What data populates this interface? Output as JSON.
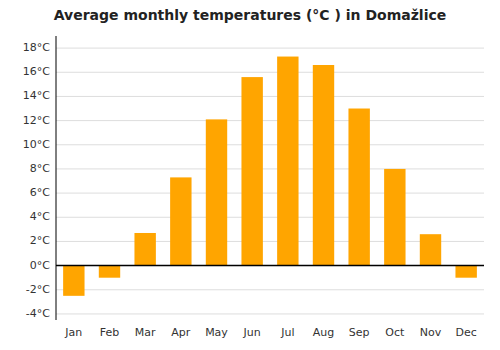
{
  "chart_data": {
    "type": "bar",
    "title": "Average monthly temperatures (°C ) in Domažlice",
    "categories": [
      "Jan",
      "Feb",
      "Mar",
      "Apr",
      "May",
      "Jun",
      "Jul",
      "Aug",
      "Sep",
      "Oct",
      "Nov",
      "Dec"
    ],
    "values": [
      -2.5,
      -1.0,
      2.7,
      7.3,
      12.1,
      15.6,
      17.3,
      16.6,
      13.0,
      8.0,
      2.6,
      -1.0
    ],
    "color": "#FFA500",
    "ylim": [
      -4.5,
      19
    ],
    "yticks": [
      {
        "value": -4,
        "label": "-4°C"
      },
      {
        "value": -2,
        "label": "-2°C"
      },
      {
        "value": 0,
        "label": "0°C"
      },
      {
        "value": 2,
        "label": "2°C"
      },
      {
        "value": 4,
        "label": "4°C"
      },
      {
        "value": 6,
        "label": "6°C"
      },
      {
        "value": 8,
        "label": "8°C"
      },
      {
        "value": 10,
        "label": "10°C"
      },
      {
        "value": 12,
        "label": "12°C"
      },
      {
        "value": 14,
        "label": "14°C"
      },
      {
        "value": 16,
        "label": "16°C"
      },
      {
        "value": 18,
        "label": "18°C"
      }
    ],
    "grid": true
  }
}
